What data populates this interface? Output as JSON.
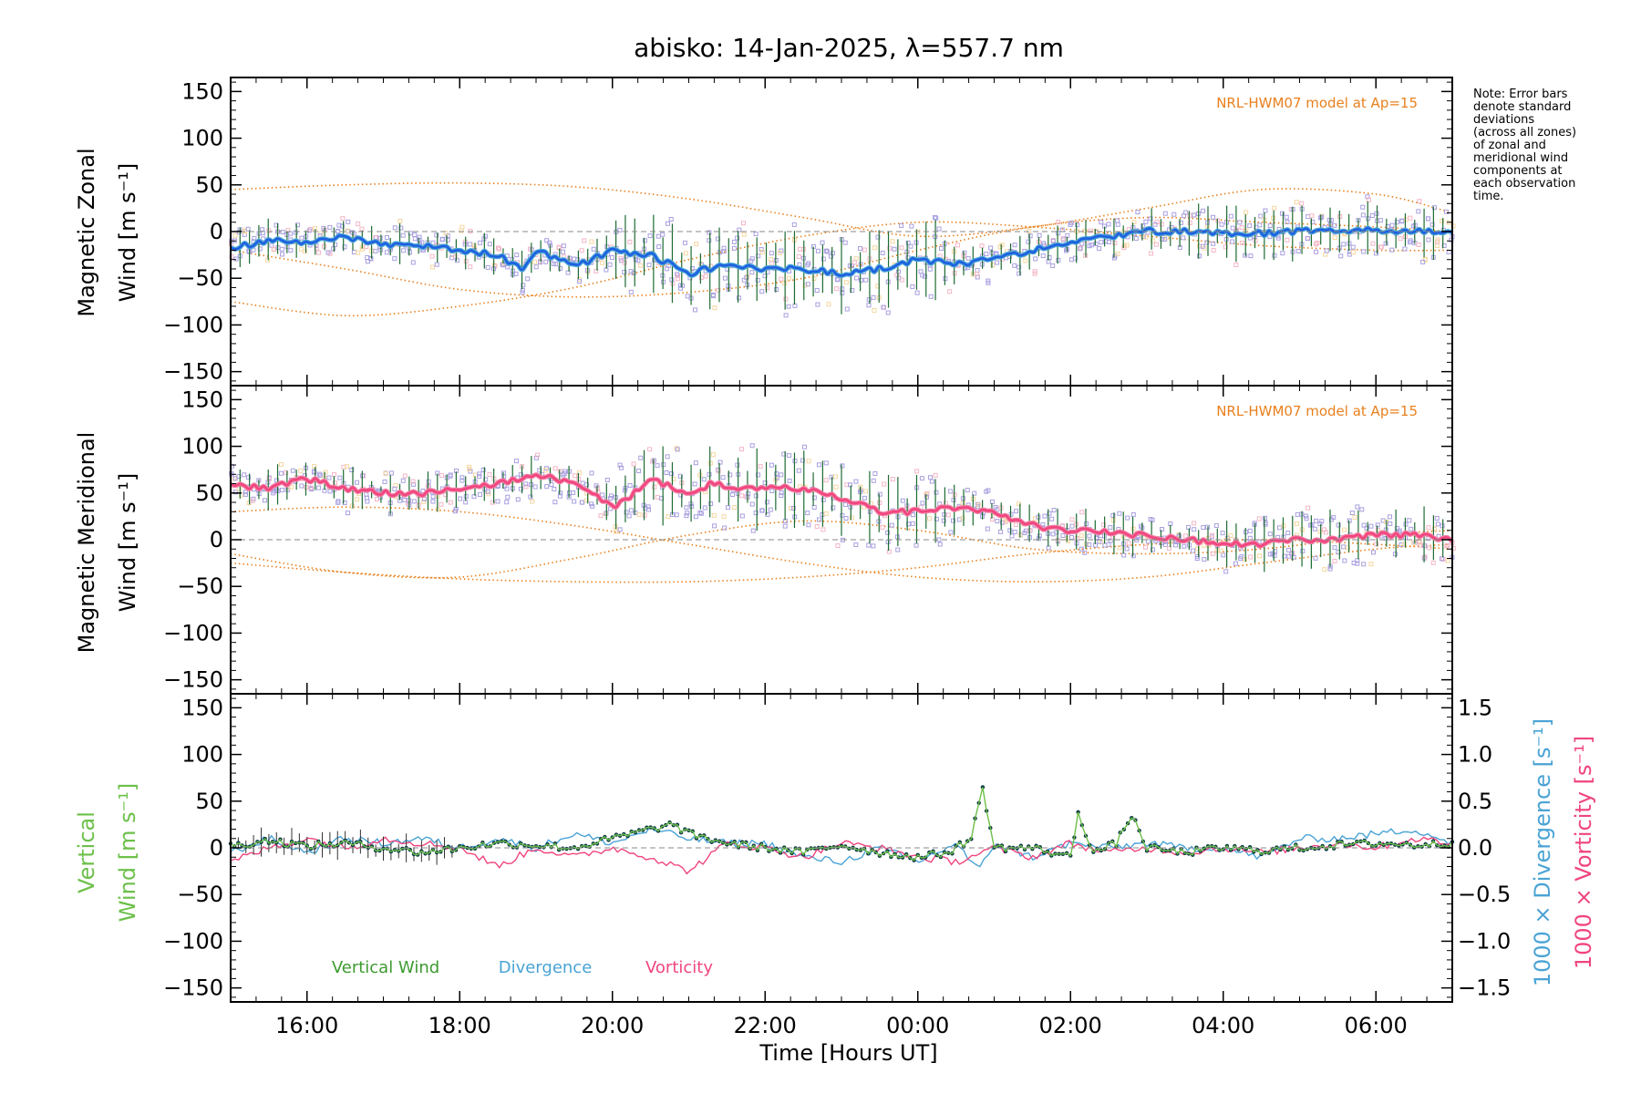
{
  "figure": {
    "title": "abisko: 14-Jan-2025, λ=557.7 nm",
    "xlabel": "Time [Hours UT]",
    "note": [
      "Note: Error bars",
      "denote standard",
      "deviations",
      "(across all zones)",
      "of zonal and",
      "meridional wind",
      "components at",
      "each observation",
      "time."
    ]
  },
  "colors": {
    "axis": "#000000",
    "model": "#e8801e",
    "zonal_line": "#1f5ee0",
    "zonal_line_alt": "#4aa6d8",
    "meridional_line": "#f0457e",
    "errorbar": "#1d6b32",
    "zone_points": "#a8a0e0",
    "vertical": "#6cc04a",
    "divergence": "#4aa3d5",
    "vorticity": "#f0457e",
    "dots": "#0e3a44",
    "zero": "#888888"
  },
  "chart_data": [
    {
      "type": "line",
      "panel": "zonal",
      "ylabel_line1": "Magnetic Zonal",
      "ylabel_line2": "Wind [m s⁻¹]",
      "annotation": "NRL-HWM07 model at Ap=15",
      "xlim": [
        15.0,
        31.0
      ],
      "ylim": [
        -165,
        165
      ],
      "x_ticks": [
        "16:00",
        "18:00",
        "20:00",
        "22:00",
        "00:00",
        "02:00",
        "04:00",
        "06:00"
      ],
      "x_tick_values": [
        16,
        18,
        20,
        22,
        24,
        26,
        28,
        30
      ],
      "y_ticks": [
        -150,
        -100,
        -50,
        0,
        50,
        100,
        150
      ],
      "series_profile": {
        "x": [
          15.0,
          15.5,
          16.0,
          16.5,
          17.0,
          17.5,
          18.0,
          18.5,
          18.8,
          19.0,
          19.3,
          19.6,
          20.0,
          20.5,
          21.0,
          21.5,
          22.0,
          22.5,
          23.0,
          23.5,
          24.0,
          24.5,
          25.0,
          25.5,
          26.0,
          26.5,
          27.0,
          27.5,
          28.0,
          28.5,
          29.0,
          29.5,
          30.0,
          30.5,
          31.0
        ],
        "y": [
          -18,
          -10,
          -12,
          -5,
          -15,
          -15,
          -20,
          -25,
          -40,
          -20,
          -30,
          -35,
          -20,
          -25,
          -45,
          -35,
          -40,
          -40,
          -45,
          -40,
          -30,
          -35,
          -30,
          -20,
          -10,
          -5,
          0,
          0,
          -2,
          -2,
          0,
          2,
          2,
          0,
          0
        ]
      },
      "model_curves": [
        {
          "x": [
            15,
            16.5,
            18,
            19.5,
            21,
            22.5,
            24,
            25.5,
            27,
            28.5,
            30,
            31
          ],
          "y": [
            45,
            50,
            52,
            48,
            35,
            15,
            -5,
            5,
            25,
            45,
            40,
            20
          ]
        },
        {
          "x": [
            15,
            16.5,
            18,
            19.5,
            21,
            22.5,
            24,
            25.5,
            27,
            28.5,
            30,
            31
          ],
          "y": [
            -20,
            -40,
            -62,
            -70,
            -65,
            -50,
            -20,
            5,
            15,
            10,
            5,
            0
          ]
        },
        {
          "x": [
            15,
            16.5,
            18,
            19.5,
            21,
            22.5,
            24,
            25.5,
            27,
            28.5,
            30,
            31
          ],
          "y": [
            -75,
            -90,
            -80,
            -60,
            -30,
            -5,
            10,
            5,
            -5,
            -15,
            -20,
            -20
          ]
        }
      ]
    },
    {
      "type": "line",
      "panel": "meridional",
      "ylabel_line1": "Magnetic Meridional",
      "ylabel_line2": "Wind [m s⁻¹]",
      "annotation": "NRL-HWM07 model at Ap=15",
      "xlim": [
        15.0,
        31.0
      ],
      "ylim": [
        -165,
        165
      ],
      "y_ticks": [
        -150,
        -100,
        -50,
        0,
        50,
        100,
        150
      ],
      "series_profile": {
        "x": [
          15.0,
          15.5,
          16.0,
          16.5,
          17.0,
          17.5,
          18.0,
          18.5,
          19.0,
          19.5,
          20.0,
          20.3,
          20.5,
          21.0,
          21.3,
          21.6,
          22.0,
          22.5,
          23.0,
          23.5,
          24.0,
          24.5,
          25.0,
          25.5,
          26.0,
          26.5,
          27.0,
          27.5,
          28.0,
          28.5,
          29.0,
          29.5,
          30.0,
          30.5,
          31.0
        ],
        "y": [
          58,
          55,
          65,
          55,
          50,
          50,
          55,
          60,
          70,
          60,
          35,
          50,
          65,
          50,
          60,
          55,
          55,
          55,
          45,
          30,
          30,
          35,
          30,
          15,
          10,
          8,
          5,
          0,
          -5,
          -5,
          0,
          0,
          5,
          5,
          0
        ]
      },
      "model_curves": [
        {
          "x": [
            15,
            16.5,
            18,
            19.5,
            21,
            22.5,
            24,
            25.5,
            27,
            28.5,
            30,
            31
          ],
          "y": [
            30,
            35,
            30,
            15,
            -5,
            -25,
            -40,
            -45,
            -40,
            -25,
            -10,
            -5
          ]
        },
        {
          "x": [
            15,
            16.5,
            18,
            19.5,
            21,
            22.5,
            24,
            25.5,
            27,
            28.5,
            30,
            31
          ],
          "y": [
            -15,
            -35,
            -40,
            -20,
            5,
            20,
            10,
            -10,
            -15,
            -10,
            5,
            10
          ]
        },
        {
          "x": [
            15,
            16.5,
            18,
            19.5,
            21,
            22.5,
            24,
            25.5,
            27,
            28.5,
            30,
            31
          ],
          "y": [
            -25,
            -35,
            -42,
            -45,
            -45,
            -40,
            -30,
            -15,
            -5,
            0,
            -5,
            -10
          ]
        }
      ]
    },
    {
      "type": "line",
      "panel": "vertical",
      "ylabel_left_line1": "Vertical",
      "ylabel_left_line2": "Wind [m s⁻¹]",
      "ylabel_right_div": "1000 × Divergence [s⁻¹]",
      "ylabel_right_vort": "1000 × Vorticity [s⁻¹]",
      "xlim": [
        15.0,
        31.0
      ],
      "ylim": [
        -165,
        165
      ],
      "y2lim": [
        -1.65,
        1.65
      ],
      "y_ticks": [
        -150,
        -100,
        -50,
        0,
        50,
        100,
        150
      ],
      "y2_ticks": [
        -1.5,
        -1.0,
        -0.5,
        0.0,
        0.5,
        1.0,
        1.5
      ],
      "y2_tick_labels": [
        "−1.5",
        "−1.0",
        "−0.5",
        "0.0",
        "0.5",
        "1.0",
        "1.5"
      ],
      "legend": [
        "Vertical Wind",
        "Divergence",
        "Vorticity"
      ],
      "series": [
        {
          "name": "Vertical Wind",
          "x": [
            15.0,
            15.5,
            16.0,
            16.5,
            17.0,
            17.5,
            18.0,
            18.5,
            19.0,
            19.5,
            20.0,
            20.5,
            20.8,
            21.0,
            21.5,
            22.0,
            22.5,
            23.0,
            23.5,
            24.0,
            24.4,
            24.7,
            24.85,
            25.0,
            25.5,
            26.0,
            26.1,
            26.3,
            26.6,
            26.8,
            27.0,
            27.5,
            28.0,
            28.5,
            29.0,
            29.5,
            30.0,
            30.5,
            31.0
          ],
          "y": [
            2,
            8,
            2,
            5,
            0,
            -5,
            0,
            5,
            3,
            0,
            10,
            20,
            25,
            15,
            5,
            0,
            -5,
            3,
            -5,
            -10,
            -5,
            10,
            65,
            0,
            0,
            -10,
            38,
            -5,
            5,
            35,
            0,
            -5,
            0,
            -3,
            0,
            3,
            5,
            3,
            5
          ]
        },
        {
          "name": "Divergence",
          "x": [
            15.0,
            15.5,
            16.0,
            16.5,
            17.0,
            17.5,
            18.0,
            18.5,
            19.0,
            19.5,
            20.0,
            20.5,
            21.0,
            21.5,
            22.0,
            22.5,
            23.0,
            23.5,
            24.0,
            24.5,
            24.8,
            25.0,
            25.5,
            26.0,
            26.5,
            27.0,
            27.5,
            28.0,
            28.5,
            29.0,
            29.5,
            30.0,
            30.5,
            31.0
          ],
          "y": [
            -0.05,
            0.1,
            -0.05,
            0.1,
            0.05,
            0.1,
            0.0,
            0.1,
            0.0,
            0.15,
            0.05,
            0.2,
            0.1,
            0.05,
            0.05,
            -0.1,
            -0.15,
            0.0,
            -0.15,
            0.05,
            -0.25,
            0.05,
            -0.1,
            0.05,
            0.0,
            0.05,
            0.0,
            0.0,
            -0.1,
            0.1,
            0.1,
            0.15,
            0.2,
            0.05
          ]
        },
        {
          "name": "Vorticity",
          "x": [
            15.0,
            15.5,
            16.0,
            16.5,
            17.0,
            17.5,
            18.0,
            18.5,
            19.0,
            19.5,
            20.0,
            20.5,
            21.0,
            21.5,
            22.0,
            22.5,
            23.0,
            23.5,
            24.0,
            24.5,
            25.0,
            25.5,
            26.0,
            26.5,
            27.0,
            27.5,
            28.0,
            28.5,
            29.0,
            29.5,
            30.0,
            30.5,
            31.0
          ],
          "y": [
            -0.15,
            0.0,
            0.1,
            0.0,
            0.1,
            0.05,
            0.0,
            -0.2,
            0.0,
            -0.1,
            0.0,
            -0.1,
            -0.25,
            0.05,
            0.0,
            -0.1,
            0.05,
            0.0,
            -0.1,
            -0.15,
            0.0,
            -0.1,
            0.05,
            -0.05,
            0.0,
            -0.05,
            0.0,
            -0.05,
            0.0,
            0.05,
            0.0,
            0.1,
            0.05
          ]
        }
      ]
    }
  ]
}
